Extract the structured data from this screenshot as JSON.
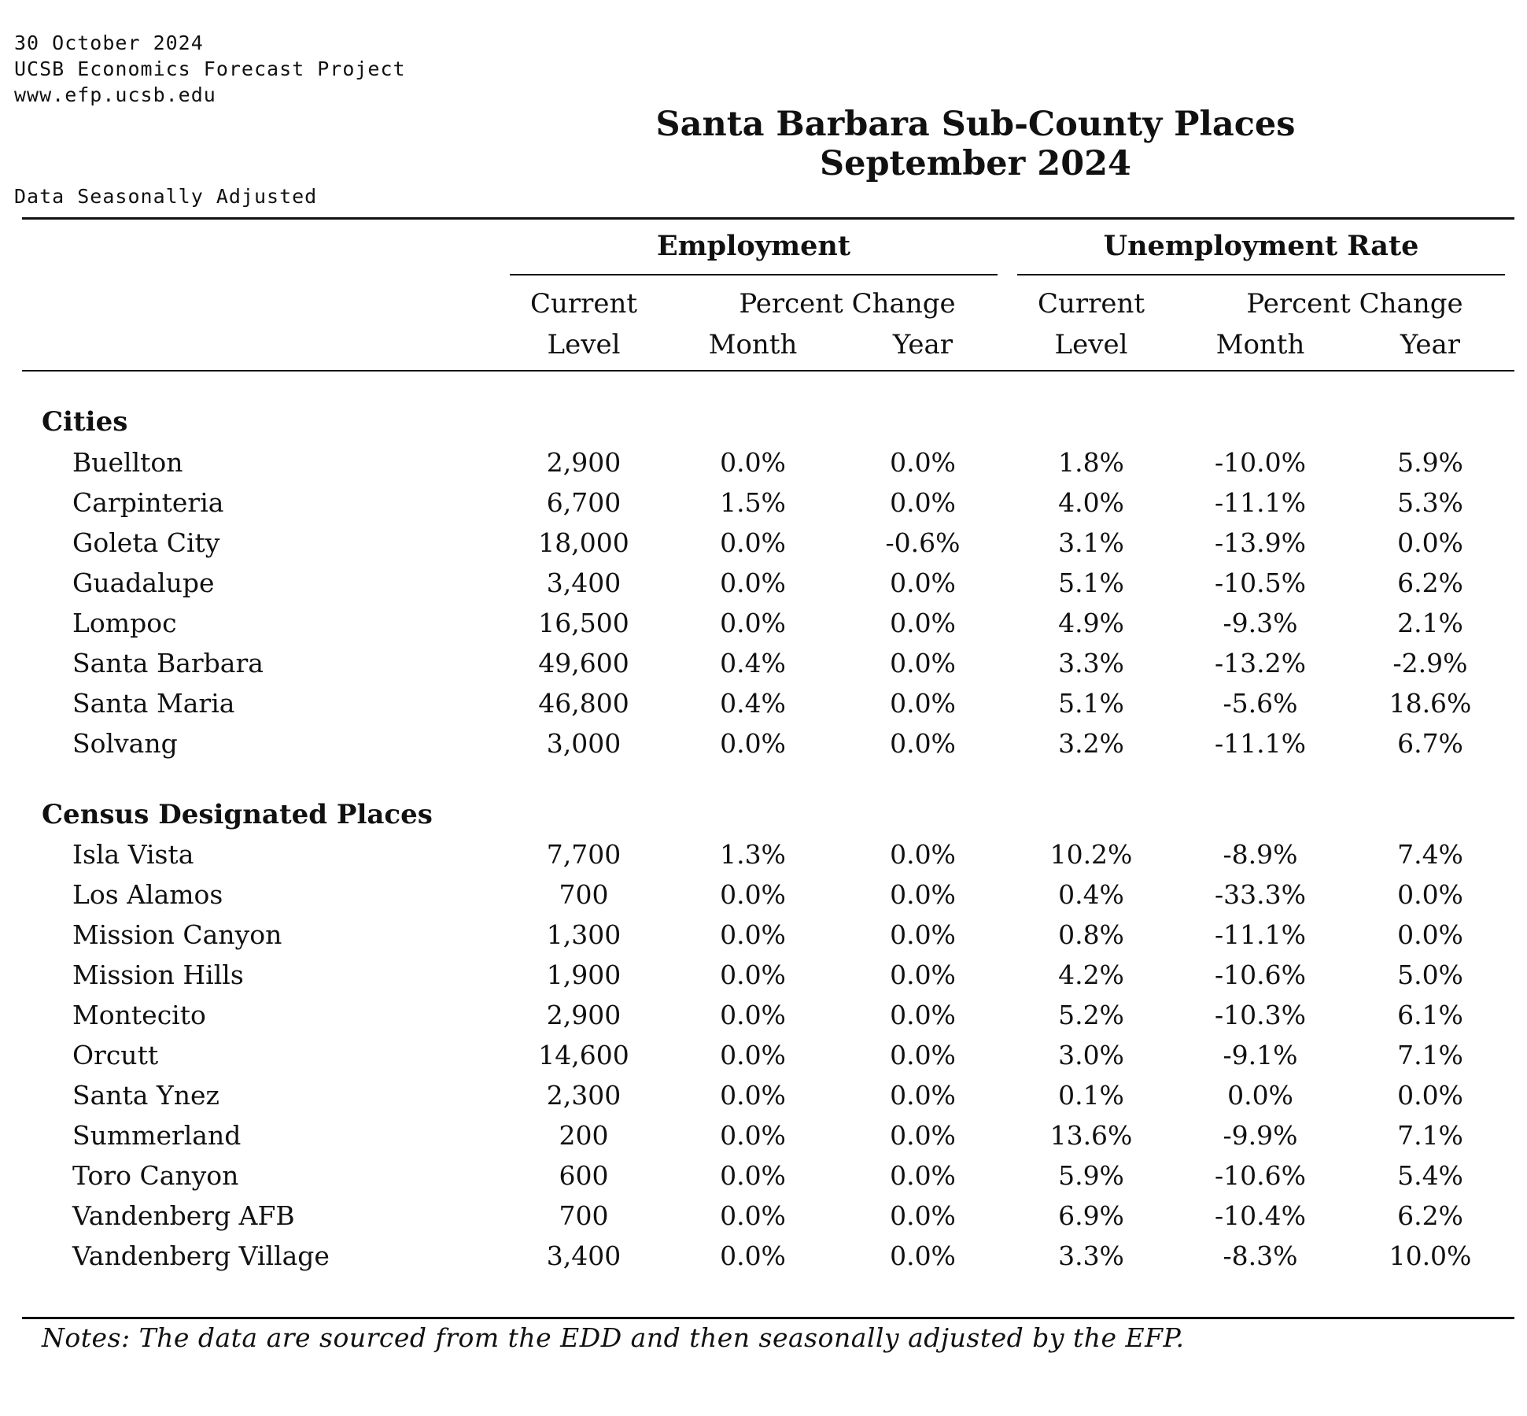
{
  "meta": {
    "date": "30 October 2024",
    "org": "UCSB Economics Forecast Project",
    "url": "www.efp.ucsb.edu",
    "adjustment": "Data Seasonally Adjusted"
  },
  "title": {
    "line1": "Santa Barbara Sub-County Places",
    "line2": "September 2024"
  },
  "groups": {
    "employment": "Employment",
    "unemployment": "Unemployment Rate"
  },
  "columns": {
    "current": "Current",
    "level": "Level",
    "percent_change": "Percent Change",
    "month": "Month",
    "year": "Year"
  },
  "sections": [
    {
      "label": "Cities",
      "rows": [
        {
          "place": "Buellton",
          "emp_level": "2,900",
          "emp_month": "0.0%",
          "emp_year": "0.0%",
          "ur_level": "1.8%",
          "ur_month": "-10.0%",
          "ur_year": "5.9%"
        },
        {
          "place": "Carpinteria",
          "emp_level": "6,700",
          "emp_month": "1.5%",
          "emp_year": "0.0%",
          "ur_level": "4.0%",
          "ur_month": "-11.1%",
          "ur_year": "5.3%"
        },
        {
          "place": "Goleta City",
          "emp_level": "18,000",
          "emp_month": "0.0%",
          "emp_year": "-0.6%",
          "ur_level": "3.1%",
          "ur_month": "-13.9%",
          "ur_year": "0.0%"
        },
        {
          "place": "Guadalupe",
          "emp_level": "3,400",
          "emp_month": "0.0%",
          "emp_year": "0.0%",
          "ur_level": "5.1%",
          "ur_month": "-10.5%",
          "ur_year": "6.2%"
        },
        {
          "place": "Lompoc",
          "emp_level": "16,500",
          "emp_month": "0.0%",
          "emp_year": "0.0%",
          "ur_level": "4.9%",
          "ur_month": "-9.3%",
          "ur_year": "2.1%"
        },
        {
          "place": "Santa Barbara",
          "emp_level": "49,600",
          "emp_month": "0.4%",
          "emp_year": "0.0%",
          "ur_level": "3.3%",
          "ur_month": "-13.2%",
          "ur_year": "-2.9%"
        },
        {
          "place": "Santa Maria",
          "emp_level": "46,800",
          "emp_month": "0.4%",
          "emp_year": "0.0%",
          "ur_level": "5.1%",
          "ur_month": "-5.6%",
          "ur_year": "18.6%"
        },
        {
          "place": "Solvang",
          "emp_level": "3,000",
          "emp_month": "0.0%",
          "emp_year": "0.0%",
          "ur_level": "3.2%",
          "ur_month": "-11.1%",
          "ur_year": "6.7%"
        }
      ]
    },
    {
      "label": "Census Designated Places",
      "rows": [
        {
          "place": "Isla Vista",
          "emp_level": "7,700",
          "emp_month": "1.3%",
          "emp_year": "0.0%",
          "ur_level": "10.2%",
          "ur_month": "-8.9%",
          "ur_year": "7.4%"
        },
        {
          "place": "Los Alamos",
          "emp_level": "700",
          "emp_month": "0.0%",
          "emp_year": "0.0%",
          "ur_level": "0.4%",
          "ur_month": "-33.3%",
          "ur_year": "0.0%"
        },
        {
          "place": "Mission Canyon",
          "emp_level": "1,300",
          "emp_month": "0.0%",
          "emp_year": "0.0%",
          "ur_level": "0.8%",
          "ur_month": "-11.1%",
          "ur_year": "0.0%"
        },
        {
          "place": "Mission Hills",
          "emp_level": "1,900",
          "emp_month": "0.0%",
          "emp_year": "0.0%",
          "ur_level": "4.2%",
          "ur_month": "-10.6%",
          "ur_year": "5.0%"
        },
        {
          "place": "Montecito",
          "emp_level": "2,900",
          "emp_month": "0.0%",
          "emp_year": "0.0%",
          "ur_level": "5.2%",
          "ur_month": "-10.3%",
          "ur_year": "6.1%"
        },
        {
          "place": "Orcutt",
          "emp_level": "14,600",
          "emp_month": "0.0%",
          "emp_year": "0.0%",
          "ur_level": "3.0%",
          "ur_month": "-9.1%",
          "ur_year": "7.1%"
        },
        {
          "place": "Santa Ynez",
          "emp_level": "2,300",
          "emp_month": "0.0%",
          "emp_year": "0.0%",
          "ur_level": "0.1%",
          "ur_month": "0.0%",
          "ur_year": "0.0%"
        },
        {
          "place": "Summerland",
          "emp_level": "200",
          "emp_month": "0.0%",
          "emp_year": "0.0%",
          "ur_level": "13.6%",
          "ur_month": "-9.9%",
          "ur_year": "7.1%"
        },
        {
          "place": "Toro Canyon",
          "emp_level": "600",
          "emp_month": "0.0%",
          "emp_year": "0.0%",
          "ur_level": "5.9%",
          "ur_month": "-10.6%",
          "ur_year": "5.4%"
        },
        {
          "place": "Vandenberg AFB",
          "emp_level": "700",
          "emp_month": "0.0%",
          "emp_year": "0.0%",
          "ur_level": "6.9%",
          "ur_month": "-10.4%",
          "ur_year": "6.2%"
        },
        {
          "place": "Vandenberg Village",
          "emp_level": "3,400",
          "emp_month": "0.0%",
          "emp_year": "0.0%",
          "ur_level": "3.3%",
          "ur_month": "-8.3%",
          "ur_year": "10.0%"
        }
      ]
    }
  ],
  "notes": "Notes: The data are sourced from the EDD and then seasonally adjusted by the EFP."
}
